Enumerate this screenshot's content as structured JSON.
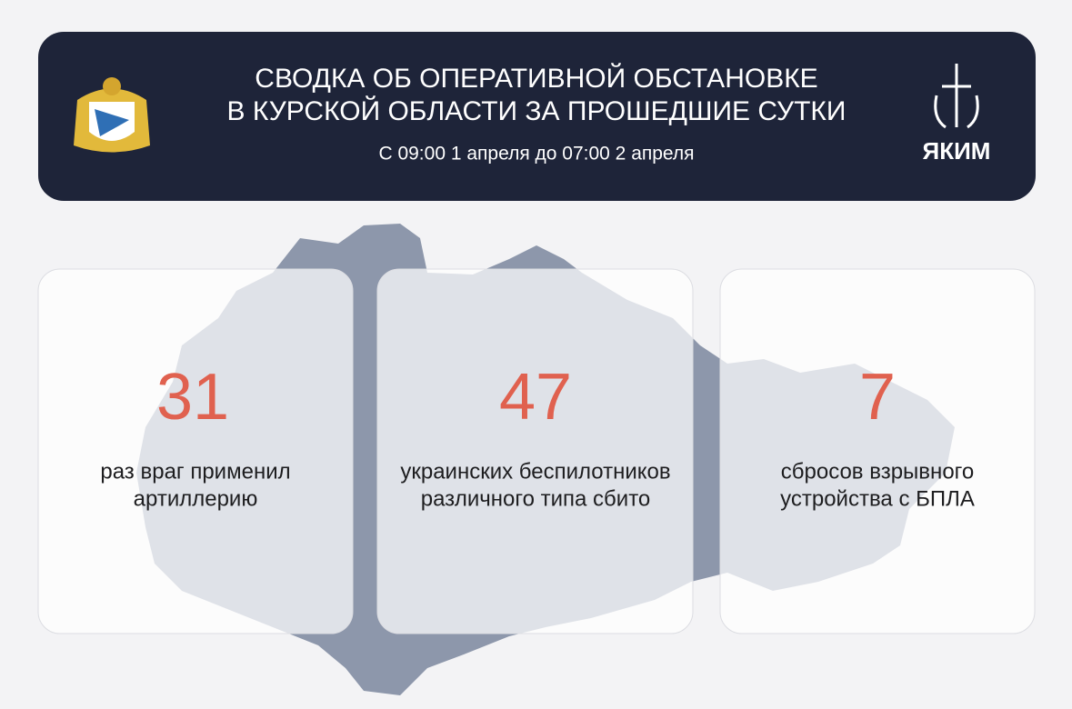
{
  "header": {
    "title": [
      "СВОДКА ОБ ОПЕРАТИВНОЙ ОБСТАНОВКЕ",
      "В КУРСКОЙ ОБЛАСТИ ЗА ПРОШЕДШИЕ СУТКИ"
    ],
    "subtitle": "С 09:00 1 апреля до 07:00 2 апреля",
    "logo": "ЯКИМ"
  },
  "cards": [
    {
      "number": 31,
      "text": [
        "раз враг применил",
        "артиллерию"
      ]
    },
    {
      "number": 47,
      "text": [
        "украинских беспилотников",
        "различного типа сбито"
      ]
    },
    {
      "number": 7,
      "text": [
        "сбросов взрывного",
        "устройства с БПЛА"
      ]
    }
  ]
}
